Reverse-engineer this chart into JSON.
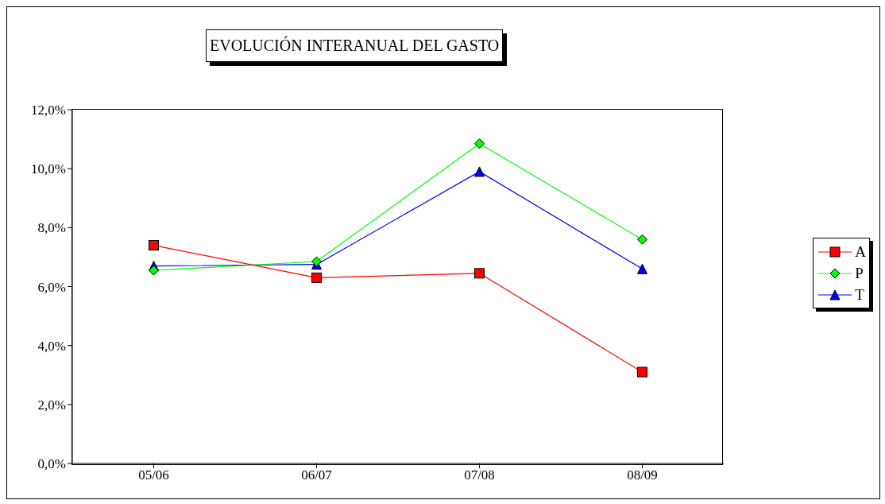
{
  "chart_data": {
    "type": "line",
    "title": "EVOLUCIÓN INTERANUAL DEL GASTO",
    "categories": [
      "05/06",
      "06/07",
      "07/08",
      "08/09"
    ],
    "series": [
      {
        "name": "A",
        "color": "#ff0000",
        "marker": "square",
        "values": [
          7.4,
          6.3,
          6.45,
          3.1
        ]
      },
      {
        "name": "P",
        "color": "#00ff00",
        "marker": "diamond",
        "values": [
          6.55,
          6.85,
          10.85,
          7.6
        ]
      },
      {
        "name": "T",
        "color": "#0000ff",
        "marker": "triangle",
        "values": [
          6.7,
          6.75,
          9.9,
          6.6
        ]
      }
    ],
    "ylim": [
      0,
      12
    ],
    "yticks": [
      {
        "value": 0,
        "label": "0,0%"
      },
      {
        "value": 2,
        "label": "2,0%"
      },
      {
        "value": 4,
        "label": "4,0%"
      },
      {
        "value": 6,
        "label": "6,0%"
      },
      {
        "value": 8,
        "label": "8,0%"
      },
      {
        "value": 10,
        "label": "10,0%"
      },
      {
        "value": 12,
        "label": "12,0%"
      }
    ],
    "grid": false,
    "legend": "right"
  }
}
